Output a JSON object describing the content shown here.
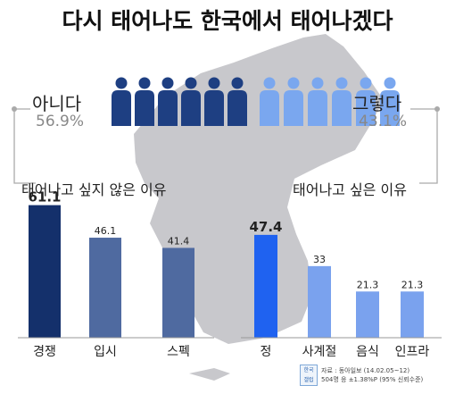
{
  "title": "다시 태어나도 한국에서 태어나겠다",
  "no": {
    "label": "아니다",
    "pct": "56.9%",
    "reason": "태어나고 싶지 않은 이유"
  },
  "yes": {
    "label": "그렇다",
    "pct": "43.1%",
    "reason": "태어나고 싶은 이유"
  },
  "source": {
    "logo": "한국 갤럽",
    "line1": "자료 : 동아일보 (14.02.05~12)",
    "line2": "504명 응 ±1.38%P (95% 신뢰수준)"
  },
  "colors": {
    "no_figures": "#1e3f82",
    "yes_figures": "#7aa7ef",
    "map": "#c8c8cc",
    "no_main_bar": "#14306b",
    "no_other_bar": "#4f6aa0",
    "yes_main_bar": "#1f62f0",
    "yes_other_bar": "#7aa2ee"
  },
  "chart_data": [
    {
      "type": "bar",
      "categories": [
        "경쟁",
        "입시",
        "스펙"
      ],
      "values": [
        61.1,
        46.1,
        41.4
      ],
      "data_labels": [
        "61.1",
        "46.1",
        "41.4"
      ],
      "ylim": [
        0,
        70
      ]
    },
    {
      "type": "bar",
      "categories": [
        "정",
        "사계절",
        "음식",
        "인프라"
      ],
      "values": [
        47.4,
        33,
        21.3,
        21.3
      ],
      "data_labels": [
        "47.4",
        "33",
        "21.3",
        "21.3"
      ],
      "ylim": [
        0,
        70
      ]
    }
  ]
}
